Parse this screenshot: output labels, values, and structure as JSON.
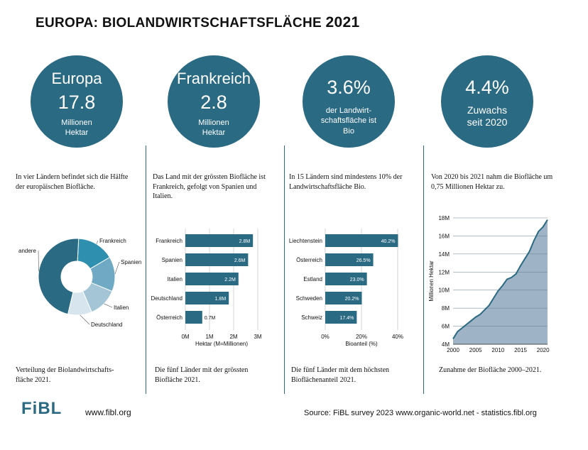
{
  "title": {
    "main": "EUROPA: BIOLANDWIRTSCHAFTSFLÄCHE",
    "year": "2021"
  },
  "circles": [
    {
      "big": "Europa",
      "num": "17.8",
      "small1": "Millionen",
      "small2": "Hektar",
      "small3": ""
    },
    {
      "big": "Frankreich",
      "num": "2.8",
      "small1": "Millionen",
      "small2": "Hektar",
      "small3": ""
    },
    {
      "big": "",
      "num": "3.6%",
      "small1": "der Landwirt-",
      "small2": "schaftsfläche ist",
      "small3": "Bio"
    },
    {
      "big": "",
      "num": "4.4%",
      "small1": "Zuwachs",
      "small2": "seit 2020",
      "small3": ""
    }
  ],
  "descriptions": [
    "In vier Ländern befindet sich die Hälfte der europäischen Biofläche.",
    "Das Land mit der grössten Biofläche ist Frankreich, gefolgt von Spanien und Italien.",
    "In 15 Ländern sind mindestens 10% der Landwirtschaftsfläche Bio.",
    "Von 2020 bis 2021 nahm die Biofläche um 0,75 Millionen Hektar zu."
  ],
  "captions": [
    "Verteilung der Biolandwirtschafts-fläche 2021.",
    "Die fünf Länder mit der grössten Biofläche 2021.",
    "Die fünf Länder mit dem höchsten Bioflächenanteil 2021.",
    "Zunahme der Biofläche 2000–2021."
  ],
  "colors": {
    "accent": "#2b6a83",
    "area_fill": "#9eb3c6"
  },
  "chart_data": [
    {
      "type": "pie",
      "variant": "donut",
      "labels": [
        "Frankreich",
        "Spanien",
        "Italien",
        "Deutschland",
        "andere"
      ],
      "values": [
        15.7,
        14.7,
        12.4,
        10.1,
        47.1
      ],
      "colors": [
        "#2f8fae",
        "#6fa9c3",
        "#a3c5d6",
        "#d7e6ee",
        "#2b6a83"
      ]
    },
    {
      "type": "bar",
      "orientation": "horizontal",
      "categories": [
        "Frankreich",
        "Spanien",
        "Italien",
        "Deutschland",
        "Österreich"
      ],
      "values": [
        2.8,
        2.6,
        2.2,
        1.8,
        0.7
      ],
      "value_labels": [
        "2.8M",
        "2.6M",
        "2.2M",
        "1.8M",
        "0.7M"
      ],
      "xlabel": "Hektar (M=Millionen)",
      "xlim": [
        0,
        3
      ],
      "xticks": [
        "0M",
        "1M",
        "2M",
        "3M"
      ]
    },
    {
      "type": "bar",
      "orientation": "horizontal",
      "categories": [
        "Liechtenstein",
        "Österreich",
        "Estland",
        "Schweden",
        "Schweiz"
      ],
      "values": [
        40.2,
        26.5,
        23.0,
        20.2,
        17.4
      ],
      "value_labels": [
        "40.2%",
        "26.5%",
        "23.0%",
        "20.2%",
        "17.4%"
      ],
      "xlabel": "Bioanteil (%)",
      "xlim": [
        0,
        40
      ],
      "xticks": [
        "0%",
        "20%",
        "40%"
      ]
    },
    {
      "type": "area",
      "x": [
        2000,
        2001,
        2002,
        2003,
        2004,
        2005,
        2006,
        2007,
        2008,
        2009,
        2010,
        2011,
        2012,
        2013,
        2014,
        2015,
        2016,
        2017,
        2018,
        2019,
        2020,
        2021
      ],
      "values": [
        4.6,
        5.4,
        5.8,
        6.2,
        6.6,
        7.0,
        7.3,
        7.8,
        8.3,
        9.1,
        9.9,
        10.5,
        11.2,
        11.4,
        11.8,
        12.7,
        13.5,
        14.3,
        15.5,
        16.5,
        17.0,
        17.8
      ],
      "ylabel": "Millionen Hektar",
      "ylim": [
        4,
        18
      ],
      "yticks": [
        "4M",
        "6M",
        "8M",
        "10M",
        "12M",
        "14M",
        "16M",
        "18M"
      ],
      "xticks": [
        "2000",
        "2005",
        "2010",
        "2015",
        "2020"
      ],
      "grid": true
    }
  ],
  "footer": {
    "logo": "FiBL",
    "url": "www.fibl.org",
    "source": "Source: FiBL survey 2023 www.organic-world.net - statistics.fibl.org"
  }
}
